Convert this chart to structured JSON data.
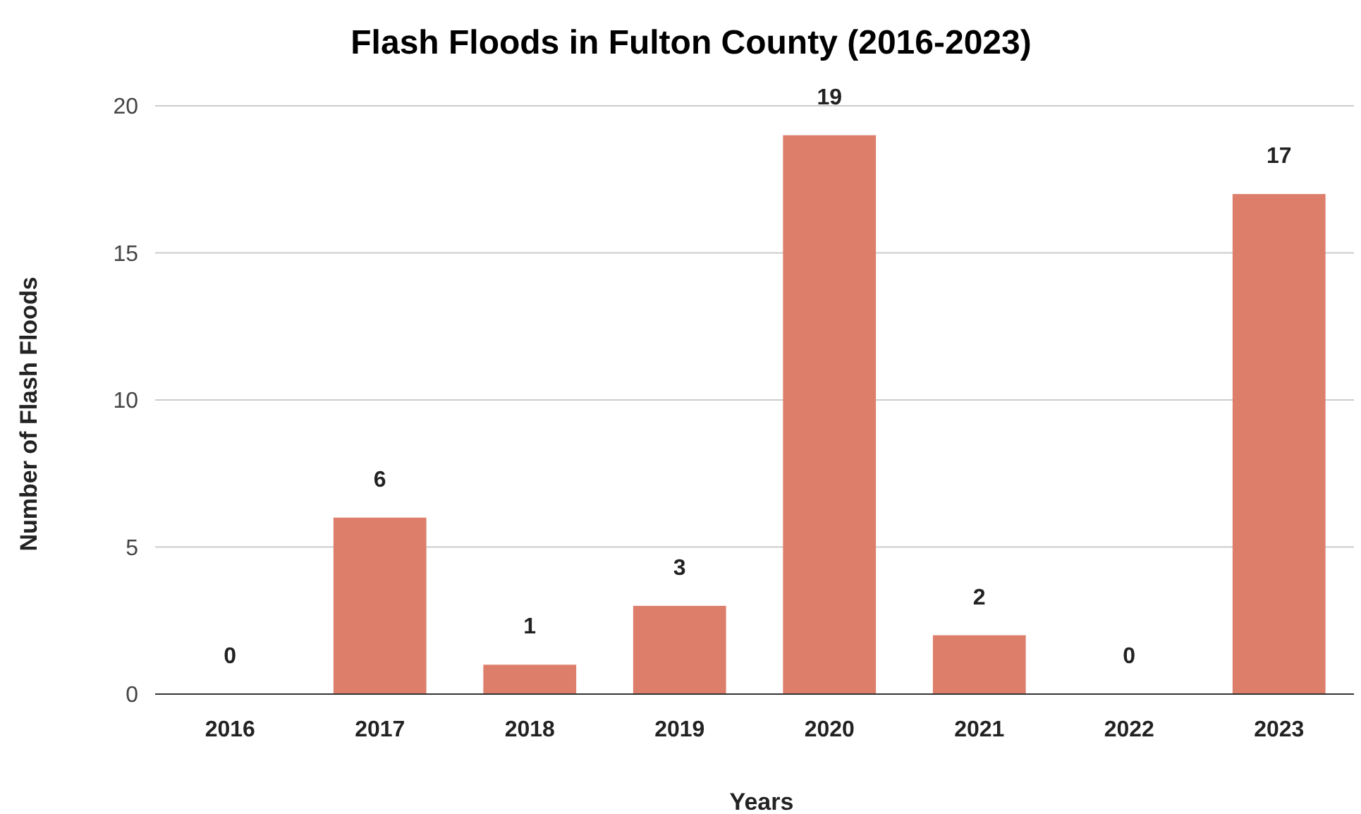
{
  "chart_data": {
    "type": "bar",
    "title": "Flash Floods in Fulton County (2016-2023)",
    "xlabel": "Years",
    "ylabel": "Number of Flash Floods",
    "categories": [
      "2016",
      "2017",
      "2018",
      "2019",
      "2020",
      "2021",
      "2022",
      "2023"
    ],
    "values": [
      0,
      6,
      1,
      3,
      19,
      2,
      0,
      17
    ],
    "color": "#dd7e6b",
    "ylim": [
      0,
      20
    ],
    "yticks": [
      0,
      5,
      10,
      15,
      20
    ],
    "grid": "y",
    "data_labels": true
  }
}
